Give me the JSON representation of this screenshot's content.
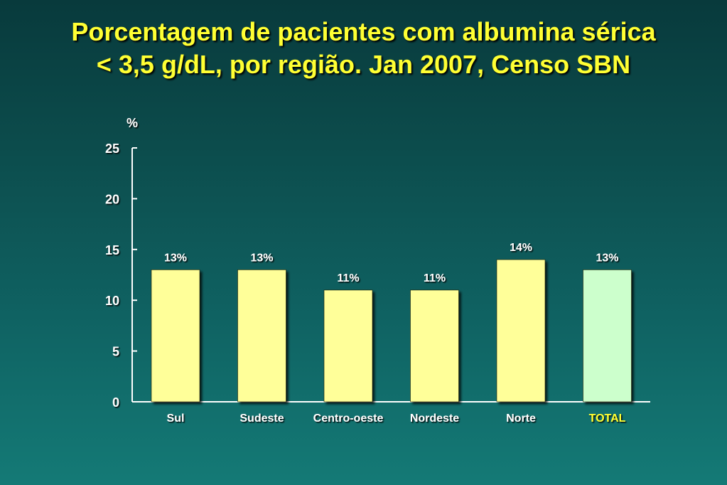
{
  "title_line1": "Porcentagem de pacientes com albumina sérica",
  "title_line2": "< 3,5 g/dL, por região. Jan 2007, Censo SBN",
  "colors": {
    "title": "#ffff33",
    "bar_default": "#ffff99",
    "bar_total": "#ccffcc",
    "axis": "#ffffff",
    "text": "#ffffff",
    "total_label": "#ffff33"
  },
  "chart_data": {
    "type": "bar",
    "title": "Porcentagem de pacientes com albumina sérica < 3,5 g/dL, por região. Jan 2007, Censo SBN",
    "ylabel": "%",
    "xlabel": "",
    "ylim": [
      0,
      25
    ],
    "yticks": [
      0,
      5,
      10,
      15,
      20,
      25
    ],
    "categories": [
      "Sul",
      "Sudeste",
      "Centro-oeste",
      "Nordeste",
      "Norte",
      "TOTAL"
    ],
    "values": [
      13,
      13,
      11,
      11,
      14,
      13
    ],
    "data_labels": [
      "13%",
      "13%",
      "11%",
      "11%",
      "14%",
      "13%"
    ],
    "grid": false,
    "legend": "none",
    "highlight": [
      "TOTAL"
    ]
  }
}
